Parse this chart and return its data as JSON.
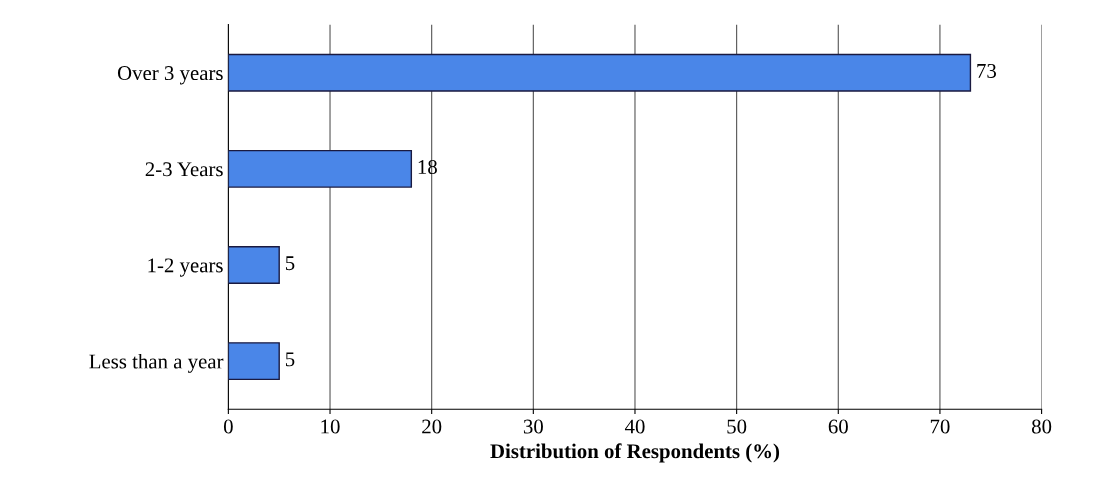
{
  "chart_data": {
    "type": "bar",
    "orientation": "horizontal",
    "xlabel": "Distribution of Respondents (%)",
    "categories": [
      "Over 3 years",
      "2-3 Years",
      "1-2 years",
      "Less than a year"
    ],
    "values": [
      73,
      18,
      5,
      5
    ],
    "color": "#4a86e8",
    "xlim": [
      0,
      80
    ],
    "xticks": [
      0,
      10,
      20,
      30,
      40,
      50,
      60,
      70,
      80
    ],
    "grid": "x",
    "data_labels": true
  }
}
